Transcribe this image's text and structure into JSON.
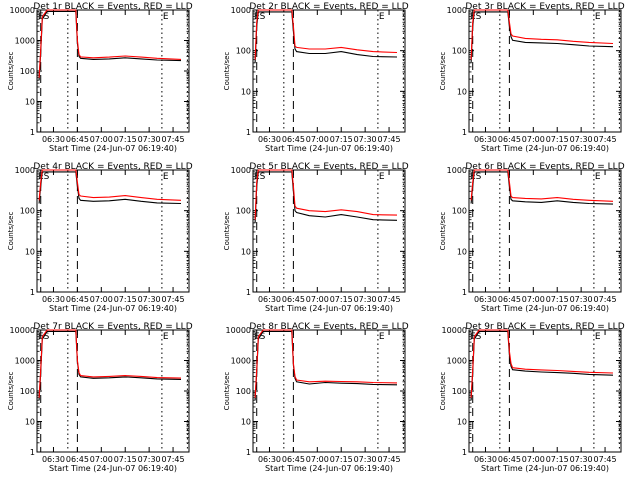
{
  "figure": {
    "ylabel": "Counts/sec",
    "xlabel": "Start Time (24-Jun-07 06:19:40)"
  },
  "chart_data": [
    {
      "type": "line",
      "title": "Det 1r BLACK = Events, RED = LLD",
      "xlabel": "Start Time (24-Jun-07 06:19:40)",
      "ylabel": "Counts/sec",
      "ylim": [
        1,
        10000
      ],
      "y_scale": "log",
      "xlim": [
        "06:19:40",
        "07:55"
      ],
      "x_ticks": [
        "06:30",
        "06:45",
        "07:00",
        "07:15",
        "07:30",
        "07:45"
      ],
      "y_ticks": [
        "1",
        "10",
        "100",
        "1000",
        "10000"
      ],
      "markers": [
        "ES",
        "E"
      ],
      "series": [
        {
          "name": "Events",
          "color": "#000000",
          "x": [
            "06:21",
            "06:22",
            "06:23",
            "06:26",
            "06:30",
            "06:40",
            "06:44",
            "06:45",
            "06:46",
            "06:47",
            "06:55",
            "07:05",
            "07:15",
            "07:25",
            "07:35",
            "07:50"
          ],
          "y": [
            50,
            400,
            5000,
            9000,
            9000,
            9000,
            9000,
            800,
            300,
            260,
            240,
            250,
            270,
            250,
            230,
            220
          ]
        },
        {
          "name": "LLD",
          "color": "#ff0000",
          "x": [
            "06:21",
            "06:22",
            "06:23",
            "06:26",
            "06:30",
            "06:40",
            "06:44",
            "06:45",
            "06:46",
            "06:47",
            "06:55",
            "07:05",
            "07:15",
            "07:25",
            "07:35",
            "07:50"
          ],
          "y": [
            60,
            500,
            6000,
            10000,
            10000,
            10000,
            10000,
            1000,
            350,
            290,
            270,
            285,
            310,
            285,
            260,
            240
          ]
        }
      ]
    },
    {
      "type": "line",
      "title": "Det 2r BLACK = Events, RED = LLD",
      "xlabel": "Start Time (24-Jun-07 06:19:40)",
      "ylabel": "Counts/sec",
      "ylim": [
        1,
        1000
      ],
      "y_scale": "log",
      "xlim": [
        "06:19:40",
        "07:55"
      ],
      "x_ticks": [
        "06:30",
        "06:45",
        "07:00",
        "07:15",
        "07:30",
        "07:45"
      ],
      "y_ticks": [
        "1",
        "10",
        "100",
        "1000"
      ],
      "markers": [
        "ES",
        "E"
      ],
      "series": [
        {
          "name": "Events",
          "color": "#000000",
          "x": [
            "06:21",
            "06:22",
            "06:23",
            "06:26",
            "06:30",
            "06:40",
            "06:44",
            "06:45",
            "06:46",
            "06:47",
            "06:55",
            "07:05",
            "07:15",
            "07:25",
            "07:35",
            "07:50"
          ],
          "y": [
            50,
            400,
            900,
            900,
            900,
            900,
            900,
            300,
            110,
            95,
            85,
            85,
            95,
            80,
            72,
            70
          ]
        },
        {
          "name": "LLD",
          "color": "#ff0000",
          "x": [
            "06:21",
            "06:22",
            "06:23",
            "06:26",
            "06:30",
            "06:40",
            "06:44",
            "06:45",
            "06:46",
            "06:47",
            "06:55",
            "07:05",
            "07:15",
            "07:25",
            "07:35",
            "07:50"
          ],
          "y": [
            60,
            500,
            1000,
            1000,
            1000,
            1000,
            1000,
            400,
            130,
            120,
            110,
            110,
            120,
            105,
            95,
            90
          ]
        }
      ]
    },
    {
      "type": "line",
      "title": "Det 3r BLACK = Events, RED = LLD",
      "xlabel": "Start Time (24-Jun-07 06:19:40)",
      "ylabel": "Counts/sec",
      "ylim": [
        1,
        1000
      ],
      "y_scale": "log",
      "xlim": [
        "06:19:40",
        "07:55"
      ],
      "x_ticks": [
        "06:30",
        "06:45",
        "07:00",
        "07:15",
        "07:30",
        "07:45"
      ],
      "y_ticks": [
        "1",
        "10",
        "100",
        "1000"
      ],
      "markers": [
        "ES",
        "E"
      ],
      "series": [
        {
          "name": "Events",
          "color": "#000000",
          "x": [
            "06:21",
            "06:22",
            "06:23",
            "06:26",
            "06:30",
            "06:40",
            "06:44",
            "06:45",
            "06:46",
            "06:47",
            "06:55",
            "07:05",
            "07:15",
            "07:25",
            "07:35",
            "07:50"
          ],
          "y": [
            50,
            400,
            900,
            900,
            900,
            900,
            900,
            400,
            220,
            180,
            160,
            155,
            150,
            140,
            130,
            125
          ]
        },
        {
          "name": "LLD",
          "color": "#ff0000",
          "x": [
            "06:21",
            "06:22",
            "06:23",
            "06:26",
            "06:30",
            "06:40",
            "06:44",
            "06:45",
            "06:46",
            "06:47",
            "06:55",
            "07:05",
            "07:15",
            "07:25",
            "07:35",
            "07:50"
          ],
          "y": [
            60,
            500,
            1000,
            1000,
            1000,
            1000,
            1000,
            500,
            260,
            230,
            200,
            190,
            185,
            170,
            160,
            150
          ]
        }
      ]
    },
    {
      "type": "line",
      "title": "Det 4r BLACK = Events, RED = LLD",
      "xlabel": "Start Time (24-Jun-07 06:19:40)",
      "ylabel": "Counts/sec",
      "ylim": [
        1,
        1000
      ],
      "y_scale": "log",
      "xlim": [
        "06:19:40",
        "07:55"
      ],
      "x_ticks": [
        "06:30",
        "06:45",
        "07:00",
        "07:15",
        "07:30",
        "07:45"
      ],
      "y_ticks": [
        "1",
        "10",
        "100",
        "1000"
      ],
      "markers": [
        "ES",
        "E"
      ],
      "series": [
        {
          "name": "Events",
          "color": "#000000",
          "x": [
            "06:21",
            "06:22",
            "06:23",
            "06:26",
            "06:30",
            "06:40",
            "06:44",
            "06:45",
            "06:46",
            "06:47",
            "06:55",
            "07:05",
            "07:15",
            "07:25",
            "07:35",
            "07:50"
          ],
          "y": [
            150,
            400,
            900,
            900,
            900,
            900,
            900,
            400,
            200,
            180,
            170,
            175,
            190,
            170,
            155,
            150
          ]
        },
        {
          "name": "LLD",
          "color": "#ff0000",
          "x": [
            "06:21",
            "06:22",
            "06:23",
            "06:26",
            "06:30",
            "06:40",
            "06:44",
            "06:45",
            "06:46",
            "06:47",
            "06:55",
            "07:05",
            "07:15",
            "07:25",
            "07:35",
            "07:50"
          ],
          "y": [
            180,
            500,
            1000,
            1000,
            1000,
            1000,
            1000,
            500,
            250,
            230,
            210,
            215,
            235,
            210,
            190,
            180
          ]
        }
      ]
    },
    {
      "type": "line",
      "title": "Det 5r BLACK = Events, RED = LLD",
      "xlabel": "Start Time (24-Jun-07 06:19:40)",
      "ylabel": "Counts/sec",
      "ylim": [
        1,
        1000
      ],
      "y_scale": "log",
      "xlim": [
        "06:19:40",
        "07:55"
      ],
      "x_ticks": [
        "06:30",
        "06:45",
        "07:00",
        "07:15",
        "07:30",
        "07:45"
      ],
      "y_ticks": [
        "1",
        "10",
        "100",
        "1000"
      ],
      "markers": [
        "ES",
        "E"
      ],
      "series": [
        {
          "name": "Events",
          "color": "#000000",
          "x": [
            "06:21",
            "06:22",
            "06:23",
            "06:26",
            "06:30",
            "06:40",
            "06:44",
            "06:45",
            "06:46",
            "06:47",
            "06:55",
            "07:05",
            "07:15",
            "07:25",
            "07:35",
            "07:50"
          ],
          "y": [
            50,
            400,
            900,
            900,
            900,
            900,
            900,
            300,
            100,
            90,
            75,
            70,
            80,
            70,
            60,
            58
          ]
        },
        {
          "name": "LLD",
          "color": "#ff0000",
          "x": [
            "06:21",
            "06:22",
            "06:23",
            "06:26",
            "06:30",
            "06:40",
            "06:44",
            "06:45",
            "06:46",
            "06:47",
            "06:55",
            "07:05",
            "07:15",
            "07:25",
            "07:35",
            "07:50"
          ],
          "y": [
            60,
            500,
            1000,
            1000,
            1000,
            1000,
            1000,
            400,
            130,
            115,
            100,
            95,
            105,
            95,
            80,
            78
          ]
        }
      ]
    },
    {
      "type": "line",
      "title": "Det 6r BLACK = Events, RED = LLD",
      "xlabel": "Start Time (24-Jun-07 06:19:40)",
      "ylabel": "Counts/sec",
      "ylim": [
        1,
        1000
      ],
      "y_scale": "log",
      "xlim": [
        "06:19:40",
        "07:55"
      ],
      "x_ticks": [
        "06:30",
        "06:45",
        "07:00",
        "07:15",
        "07:30",
        "07:45"
      ],
      "y_ticks": [
        "1",
        "10",
        "100",
        "1000"
      ],
      "markers": [
        "ES",
        "E"
      ],
      "series": [
        {
          "name": "Events",
          "color": "#000000",
          "x": [
            "06:21",
            "06:22",
            "06:23",
            "06:26",
            "06:30",
            "06:40",
            "06:44",
            "06:45",
            "06:46",
            "06:47",
            "06:55",
            "07:05",
            "07:15",
            "07:25",
            "07:35",
            "07:50"
          ],
          "y": [
            150,
            400,
            900,
            900,
            900,
            900,
            900,
            400,
            190,
            175,
            165,
            160,
            175,
            160,
            150,
            145
          ]
        },
        {
          "name": "LLD",
          "color": "#ff0000",
          "x": [
            "06:21",
            "06:22",
            "06:23",
            "06:26",
            "06:30",
            "06:40",
            "06:44",
            "06:45",
            "06:46",
            "06:47",
            "06:55",
            "07:05",
            "07:15",
            "07:25",
            "07:35",
            "07:50"
          ],
          "y": [
            180,
            500,
            1000,
            1000,
            1000,
            1000,
            1000,
            500,
            230,
            210,
            200,
            195,
            210,
            190,
            180,
            170
          ]
        }
      ]
    },
    {
      "type": "line",
      "title": "Det 7r BLACK = Events, RED = LLD",
      "xlabel": "Start Time (24-Jun-07 06:19:40)",
      "ylabel": "Counts/sec",
      "ylim": [
        1,
        10000
      ],
      "y_scale": "log",
      "xlim": [
        "06:19:40",
        "07:55"
      ],
      "x_ticks": [
        "06:30",
        "06:45",
        "07:00",
        "07:15",
        "07:30",
        "07:45"
      ],
      "y_ticks": [
        "1",
        "10",
        "100",
        "1000",
        "10000"
      ],
      "markers": [
        "ES",
        "E"
      ],
      "series": [
        {
          "name": "Events",
          "color": "#000000",
          "x": [
            "06:21",
            "06:22",
            "06:23",
            "06:26",
            "06:30",
            "06:40",
            "06:44",
            "06:45",
            "06:46",
            "06:47",
            "06:55",
            "07:05",
            "07:15",
            "07:25",
            "07:35",
            "07:50"
          ],
          "y": [
            50,
            400,
            5000,
            9000,
            9000,
            9000,
            9000,
            900,
            350,
            290,
            260,
            270,
            290,
            270,
            250,
            240
          ]
        },
        {
          "name": "LLD",
          "color": "#ff0000",
          "x": [
            "06:21",
            "06:22",
            "06:23",
            "06:26",
            "06:30",
            "06:40",
            "06:44",
            "06:45",
            "06:46",
            "06:47",
            "06:55",
            "07:05",
            "07:15",
            "07:25",
            "07:35",
            "07:50"
          ],
          "y": [
            60,
            500,
            6000,
            10000,
            10000,
            10000,
            10000,
            1000,
            400,
            320,
            290,
            300,
            320,
            300,
            275,
            265
          ]
        }
      ]
    },
    {
      "type": "line",
      "title": "Det 8r BLACK = Events, RED = LLD",
      "xlabel": "Start Time (24-Jun-07 06:19:40)",
      "ylabel": "Counts/sec",
      "ylim": [
        1,
        10000
      ],
      "y_scale": "log",
      "xlim": [
        "06:19:40",
        "07:55"
      ],
      "x_ticks": [
        "06:30",
        "06:45",
        "07:00",
        "07:15",
        "07:30",
        "07:45"
      ],
      "y_ticks": [
        "1",
        "10",
        "100",
        "1000",
        "10000"
      ],
      "markers": [
        "ES",
        "E"
      ],
      "series": [
        {
          "name": "Events",
          "color": "#000000",
          "x": [
            "06:21",
            "06:22",
            "06:23",
            "06:26",
            "06:30",
            "06:40",
            "06:44",
            "06:45",
            "06:46",
            "06:47",
            "06:55",
            "07:05",
            "07:15",
            "07:25",
            "07:35",
            "07:50"
          ],
          "y": [
            50,
            400,
            5000,
            9000,
            9000,
            9000,
            9000,
            700,
            260,
            200,
            170,
            190,
            180,
            175,
            165,
            160
          ]
        },
        {
          "name": "LLD",
          "color": "#ff0000",
          "x": [
            "06:21",
            "06:22",
            "06:23",
            "06:26",
            "06:30",
            "06:40",
            "06:44",
            "06:45",
            "06:46",
            "06:47",
            "06:55",
            "07:05",
            "07:15",
            "07:25",
            "07:35",
            "07:50"
          ],
          "y": [
            60,
            500,
            6000,
            10000,
            10000,
            10000,
            10000,
            800,
            300,
            230,
            200,
            210,
            205,
            200,
            190,
            185
          ]
        }
      ]
    },
    {
      "type": "line",
      "title": "Det 9r BLACK = Events, RED = LLD",
      "xlabel": "Start Time (24-Jun-07 06:19:40)",
      "ylabel": "Counts/sec",
      "ylim": [
        1,
        10000
      ],
      "y_scale": "log",
      "xlim": [
        "06:19:40",
        "07:55"
      ],
      "x_ticks": [
        "06:30",
        "06:45",
        "07:00",
        "07:15",
        "07:30",
        "07:45"
      ],
      "y_ticks": [
        "1",
        "10",
        "100",
        "1000",
        "10000"
      ],
      "markers": [
        "ES",
        "E"
      ],
      "series": [
        {
          "name": "Events",
          "color": "#000000",
          "x": [
            "06:21",
            "06:22",
            "06:23",
            "06:26",
            "06:30",
            "06:40",
            "06:44",
            "06:45",
            "06:46",
            "06:47",
            "06:55",
            "07:05",
            "07:15",
            "07:25",
            "07:35",
            "07:50"
          ],
          "y": [
            50,
            400,
            5000,
            9000,
            9000,
            9000,
            9000,
            1500,
            650,
            500,
            450,
            420,
            400,
            380,
            350,
            330
          ]
        },
        {
          "name": "LLD",
          "color": "#ff0000",
          "x": [
            "06:21",
            "06:22",
            "06:23",
            "06:26",
            "06:30",
            "06:40",
            "06:44",
            "06:45",
            "06:46",
            "06:47",
            "06:55",
            "07:05",
            "07:15",
            "07:25",
            "07:35",
            "07:50"
          ],
          "y": [
            60,
            500,
            6000,
            10000,
            10000,
            10000,
            10000,
            2000,
            800,
            580,
            520,
            490,
            470,
            440,
            410,
            390
          ]
        }
      ]
    }
  ]
}
